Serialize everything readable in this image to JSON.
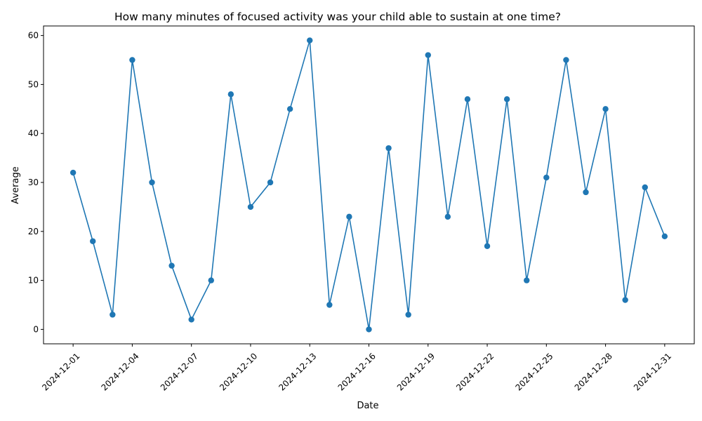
{
  "chart_data": {
    "type": "line",
    "title": "How many minutes of focused activity was your child able to sustain at one time?",
    "xlabel": "Date",
    "ylabel": "Average",
    "x": [
      "2024-12-01",
      "2024-12-02",
      "2024-12-03",
      "2024-12-04",
      "2024-12-05",
      "2024-12-06",
      "2024-12-07",
      "2024-12-08",
      "2024-12-09",
      "2024-12-10",
      "2024-12-11",
      "2024-12-12",
      "2024-12-13",
      "2024-12-14",
      "2024-12-15",
      "2024-12-16",
      "2024-12-17",
      "2024-12-18",
      "2024-12-19",
      "2024-12-20",
      "2024-12-21",
      "2024-12-22",
      "2024-12-23",
      "2024-12-24",
      "2024-12-25",
      "2024-12-26",
      "2024-12-27",
      "2024-12-28",
      "2024-12-29",
      "2024-12-30",
      "2024-12-31"
    ],
    "series": [
      {
        "values": [
          32,
          18,
          3,
          55,
          30,
          13,
          2,
          10,
          48,
          25,
          30,
          45,
          59,
          5,
          23,
          0,
          37,
          3,
          56,
          23,
          47,
          17,
          47,
          10,
          31,
          55,
          28,
          45,
          6,
          29,
          19
        ],
        "color": "#1f77b4",
        "marker": "circle"
      }
    ],
    "x_ticks": [
      "2024-12-01",
      "2024-12-04",
      "2024-12-07",
      "2024-12-10",
      "2024-12-13",
      "2024-12-16",
      "2024-12-19",
      "2024-12-22",
      "2024-12-25",
      "2024-12-28",
      "2024-12-31"
    ],
    "y_ticks": [
      0,
      10,
      20,
      30,
      40,
      50,
      60
    ],
    "xlim": [
      "2024-11-29.5",
      "2025-01-01.5"
    ],
    "ylim": [
      -2.95,
      61.95
    ],
    "x_tick_rotation": 45,
    "grid": false,
    "legend": "none"
  }
}
